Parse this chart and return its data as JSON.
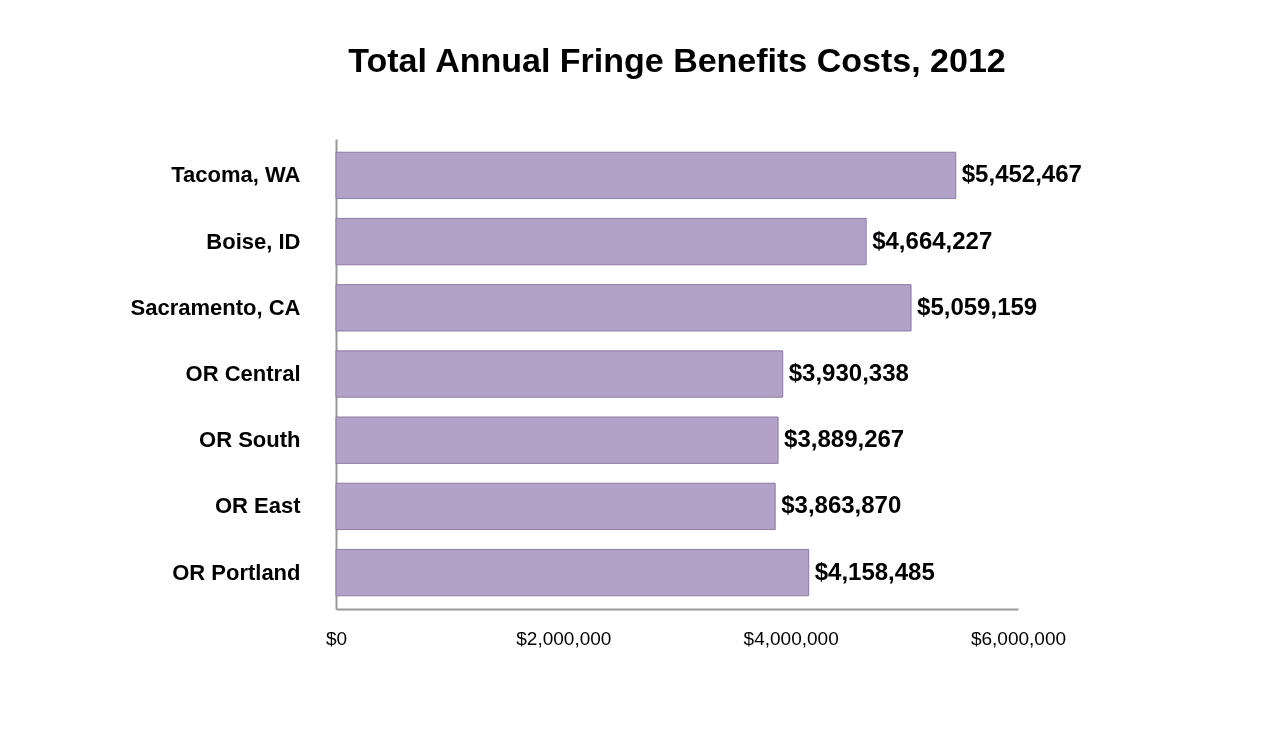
{
  "chart_data": {
    "type": "bar",
    "orientation": "horizontal",
    "title": "Total Annual Fringe Benefits Costs, 2012",
    "categories": [
      "Tacoma, WA",
      "Boise, ID",
      "Sacramento, CA",
      "OR Central",
      "OR South",
      "OR East",
      "OR Portland"
    ],
    "values": [
      5452467,
      4664227,
      5059159,
      3930338,
      3889267,
      3863870,
      4158485
    ],
    "value_labels": [
      "$5,452,467",
      "$4,664,227",
      "$5,059,159",
      "$3,930,338",
      "$3,889,267",
      "$3,863,870",
      "$4,158,485"
    ],
    "color": "#b3a2c7",
    "xlim": [
      0,
      6000000
    ],
    "xticks": [
      {
        "value": 0,
        "label": "$0"
      },
      {
        "value": 2000000,
        "label": "$2,000,000"
      },
      {
        "value": 4000000,
        "label": "$4,000,000"
      },
      {
        "value": 6000000,
        "label": "$6,000,000"
      }
    ],
    "grid": false
  }
}
